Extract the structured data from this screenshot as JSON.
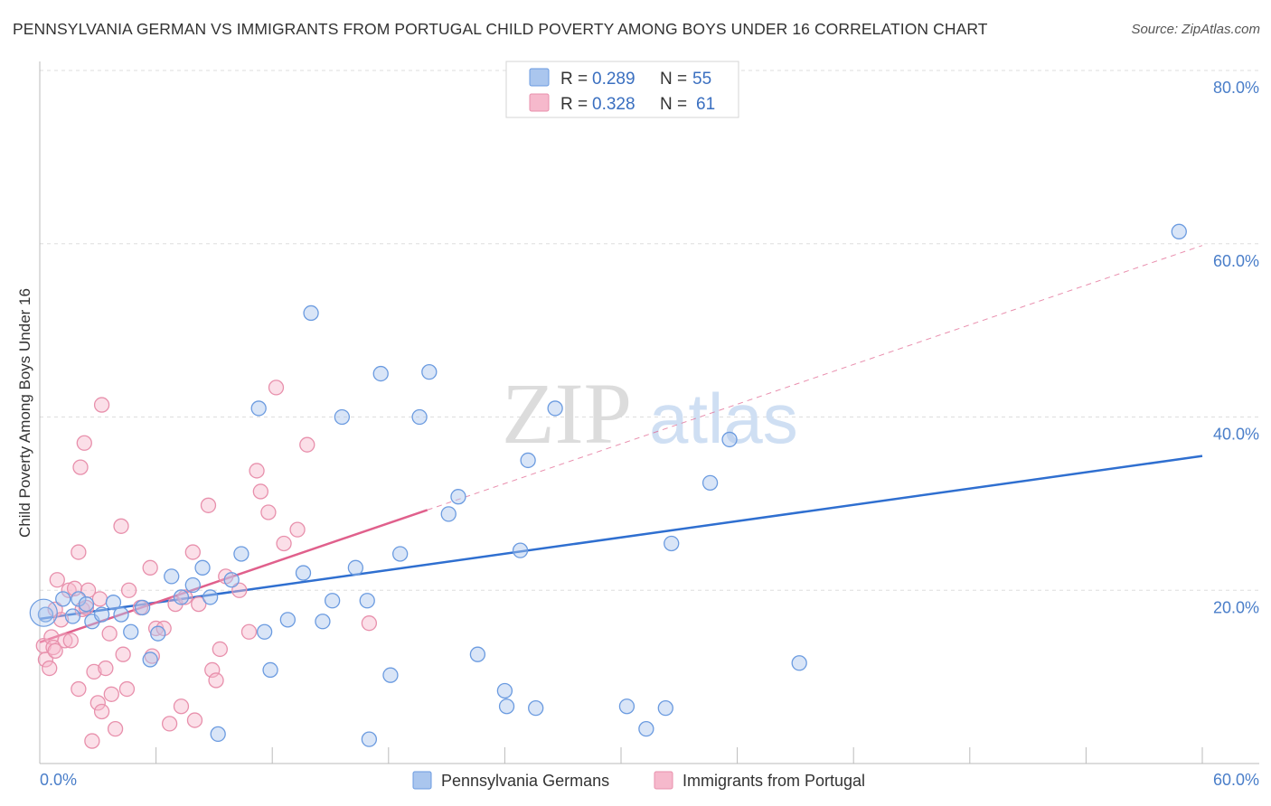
{
  "title": "PENNSYLVANIA GERMAN VS IMMIGRANTS FROM PORTUGAL CHILD POVERTY AMONG BOYS UNDER 16 CORRELATION CHART",
  "source": "Source: ZipAtlas.com",
  "watermark": {
    "zip": "ZIP",
    "atlas": "atlas"
  },
  "colors": {
    "blue_fill": "#aac6ee",
    "blue_stroke": "#6b9be0",
    "blue_line": "#2f6fd0",
    "pink_fill": "#f6b9cc",
    "pink_stroke": "#e890ac",
    "pink_line": "#e0608c",
    "axis_text": "#4a7ec9",
    "grid": "#dddddd"
  },
  "legend": {
    "r_label": "R =",
    "n_label": "N =",
    "entries": [
      {
        "r": "0.289",
        "n": "55"
      },
      {
        "r": "0.328",
        "n": "61"
      }
    ]
  },
  "chart_data": {
    "type": "scatter",
    "title": "PENNSYLVANIA GERMAN VS IMMIGRANTS FROM PORTUGAL CHILD POVERTY AMONG BOYS UNDER 16 CORRELATION CHART",
    "xlabel": "",
    "ylabel": "Child Poverty Among Boys Under 16",
    "xlim": [
      0,
      60
    ],
    "ylim": [
      0,
      80
    ],
    "x_tick_labels": [
      "0.0%",
      "60.0%"
    ],
    "y_ticks": [
      20,
      40,
      60,
      80
    ],
    "y_tick_labels": [
      "20.0%",
      "40.0%",
      "60.0%",
      "80.0%"
    ],
    "grid": true,
    "series": [
      {
        "name": "Pennsylvania Germans",
        "r": 0.289,
        "n": 55,
        "trend": {
          "x0": 0,
          "y0": 16.7,
          "x1": 60,
          "y1": 35.5,
          "dashed_from": null
        },
        "points": [
          [
            0.3,
            17.2
          ],
          [
            1.2,
            19.0
          ],
          [
            1.7,
            17.0
          ],
          [
            2.0,
            19.0
          ],
          [
            2.4,
            18.4
          ],
          [
            2.7,
            16.4
          ],
          [
            3.2,
            17.2
          ],
          [
            3.8,
            18.6
          ],
          [
            4.2,
            17.2
          ],
          [
            4.7,
            15.2
          ],
          [
            5.3,
            18.0
          ],
          [
            5.7,
            12.0
          ],
          [
            6.1,
            15.0
          ],
          [
            6.8,
            21.6
          ],
          [
            7.3,
            19.2
          ],
          [
            7.9,
            20.6
          ],
          [
            8.4,
            22.6
          ],
          [
            8.8,
            19.2
          ],
          [
            9.2,
            3.4
          ],
          [
            9.9,
            21.2
          ],
          [
            10.4,
            24.2
          ],
          [
            11.3,
            41.0
          ],
          [
            11.6,
            15.2
          ],
          [
            11.9,
            10.8
          ],
          [
            12.8,
            16.6
          ],
          [
            13.6,
            22.0
          ],
          [
            14.0,
            52.0
          ],
          [
            14.6,
            16.4
          ],
          [
            15.1,
            18.8
          ],
          [
            15.6,
            40.0
          ],
          [
            16.3,
            22.6
          ],
          [
            16.9,
            18.8
          ],
          [
            17.0,
            2.8
          ],
          [
            17.6,
            45.0
          ],
          [
            18.1,
            10.2
          ],
          [
            18.6,
            24.2
          ],
          [
            19.6,
            40.0
          ],
          [
            20.1,
            45.2
          ],
          [
            21.1,
            28.8
          ],
          [
            21.6,
            30.8
          ],
          [
            22.6,
            12.6
          ],
          [
            24.0,
            8.4
          ],
          [
            24.1,
            6.6
          ],
          [
            24.8,
            24.6
          ],
          [
            25.2,
            35.0
          ],
          [
            25.6,
            6.4
          ],
          [
            26.6,
            41.0
          ],
          [
            30.3,
            6.6
          ],
          [
            31.3,
            4.0
          ],
          [
            32.3,
            6.4
          ],
          [
            32.6,
            25.4
          ],
          [
            34.6,
            32.4
          ],
          [
            35.6,
            37.4
          ],
          [
            39.2,
            11.6
          ],
          [
            58.8,
            61.4
          ]
        ]
      },
      {
        "name": "Immigrants from Portugal",
        "r": 0.328,
        "n": 61,
        "trend": {
          "x0": 0,
          "y0": 14.0,
          "x1": 60,
          "y1": 59.8,
          "dashed_from": 20
        },
        "points": [
          [
            0.2,
            13.6
          ],
          [
            0.3,
            12.0
          ],
          [
            0.5,
            11.0
          ],
          [
            0.6,
            14.6
          ],
          [
            0.7,
            13.4
          ],
          [
            0.8,
            17.8
          ],
          [
            0.9,
            21.2
          ],
          [
            1.1,
            16.6
          ],
          [
            1.3,
            14.2
          ],
          [
            1.5,
            20.0
          ],
          [
            1.8,
            20.2
          ],
          [
            2.0,
            8.6
          ],
          [
            2.2,
            17.8
          ],
          [
            2.4,
            18.0
          ],
          [
            2.0,
            24.4
          ],
          [
            2.1,
            34.2
          ],
          [
            2.3,
            37.0
          ],
          [
            2.5,
            20.0
          ],
          [
            2.7,
            2.6
          ],
          [
            2.8,
            10.6
          ],
          [
            3.0,
            7.0
          ],
          [
            3.2,
            6.0
          ],
          [
            3.4,
            11.0
          ],
          [
            3.6,
            15.0
          ],
          [
            3.7,
            8.0
          ],
          [
            3.9,
            4.0
          ],
          [
            3.2,
            41.4
          ],
          [
            4.2,
            27.4
          ],
          [
            4.3,
            12.6
          ],
          [
            4.5,
            8.6
          ],
          [
            4.6,
            20.0
          ],
          [
            5.2,
            18.0
          ],
          [
            5.7,
            22.6
          ],
          [
            6.0,
            15.6
          ],
          [
            6.4,
            15.6
          ],
          [
            6.7,
            4.6
          ],
          [
            7.0,
            18.4
          ],
          [
            7.5,
            19.2
          ],
          [
            7.3,
            6.6
          ],
          [
            7.9,
            24.4
          ],
          [
            8.0,
            5.0
          ],
          [
            8.2,
            18.4
          ],
          [
            8.7,
            29.8
          ],
          [
            8.9,
            10.8
          ],
          [
            9.1,
            9.6
          ],
          [
            9.3,
            13.2
          ],
          [
            9.6,
            21.6
          ],
          [
            10.3,
            20.0
          ],
          [
            10.8,
            15.2
          ],
          [
            11.2,
            33.8
          ],
          [
            11.4,
            31.4
          ],
          [
            11.8,
            29.0
          ],
          [
            12.2,
            43.4
          ],
          [
            12.6,
            25.4
          ],
          [
            13.3,
            27.0
          ],
          [
            13.8,
            36.8
          ],
          [
            17.0,
            16.2
          ],
          [
            0.8,
            13.0
          ],
          [
            1.6,
            14.2
          ],
          [
            3.1,
            19.0
          ],
          [
            5.8,
            12.4
          ]
        ]
      }
    ]
  },
  "bottom_legend": [
    "Pennsylvania Germans",
    "Immigrants from Portugal"
  ]
}
